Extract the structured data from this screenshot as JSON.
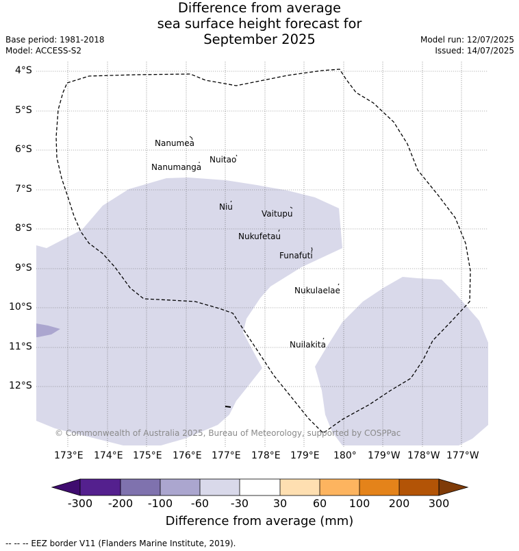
{
  "title": {
    "line1": "Difference from average",
    "line2": "sea surface height forecast for",
    "line3": "September 2025"
  },
  "meta": {
    "base_period": "Base period: 1981-2018",
    "model": "Model: ACCESS-S2",
    "model_run": "Model run: 12/07/2025",
    "issued": "Issued: 14/07/2025"
  },
  "map": {
    "lat_ticks": [
      "4°S",
      "5°S",
      "6°S",
      "7°S",
      "8°S",
      "9°S",
      "10°S",
      "11°S",
      "12°S"
    ],
    "lon_ticks": [
      "173°E",
      "174°E",
      "175°E",
      "176°E",
      "177°E",
      "178°E",
      "179°E",
      "180°",
      "179°W",
      "178°W",
      "177°W"
    ],
    "places": [
      {
        "name": "Nanumea"
      },
      {
        "name": "Nuitao"
      },
      {
        "name": "Nanumanga"
      },
      {
        "name": "Niu"
      },
      {
        "name": "Vaitupu"
      },
      {
        "name": "Nukufetau"
      },
      {
        "name": "Funafuti"
      },
      {
        "name": "Nukulaelae"
      },
      {
        "name": "Nuilakita"
      }
    ],
    "copyright": "© Commonwealth of Australia 2025, Bureau of Meteorology, supported by COSPPac",
    "colors": {
      "neg_60_30": "#d9d9ea",
      "neg_100_60": "#aba6cf",
      "eez_line": "#000000"
    }
  },
  "colorbar": {
    "title": "Difference from average (mm)",
    "labels": [
      "-300",
      "-200",
      "-100",
      "-60",
      "-30",
      "30",
      "60",
      "100",
      "200",
      "300"
    ],
    "colors": [
      "#3f0c6f",
      "#54208e",
      "#7f72ae",
      "#aba6cf",
      "#d9d9ea",
      "#ffffff",
      "#fedfb1",
      "#fdb45f",
      "#e4831a",
      "#b35406",
      "#7f3b08"
    ]
  },
  "footnote": "--  --  -- EEZ border V11 (Flanders Marine Institute, 2019)."
}
